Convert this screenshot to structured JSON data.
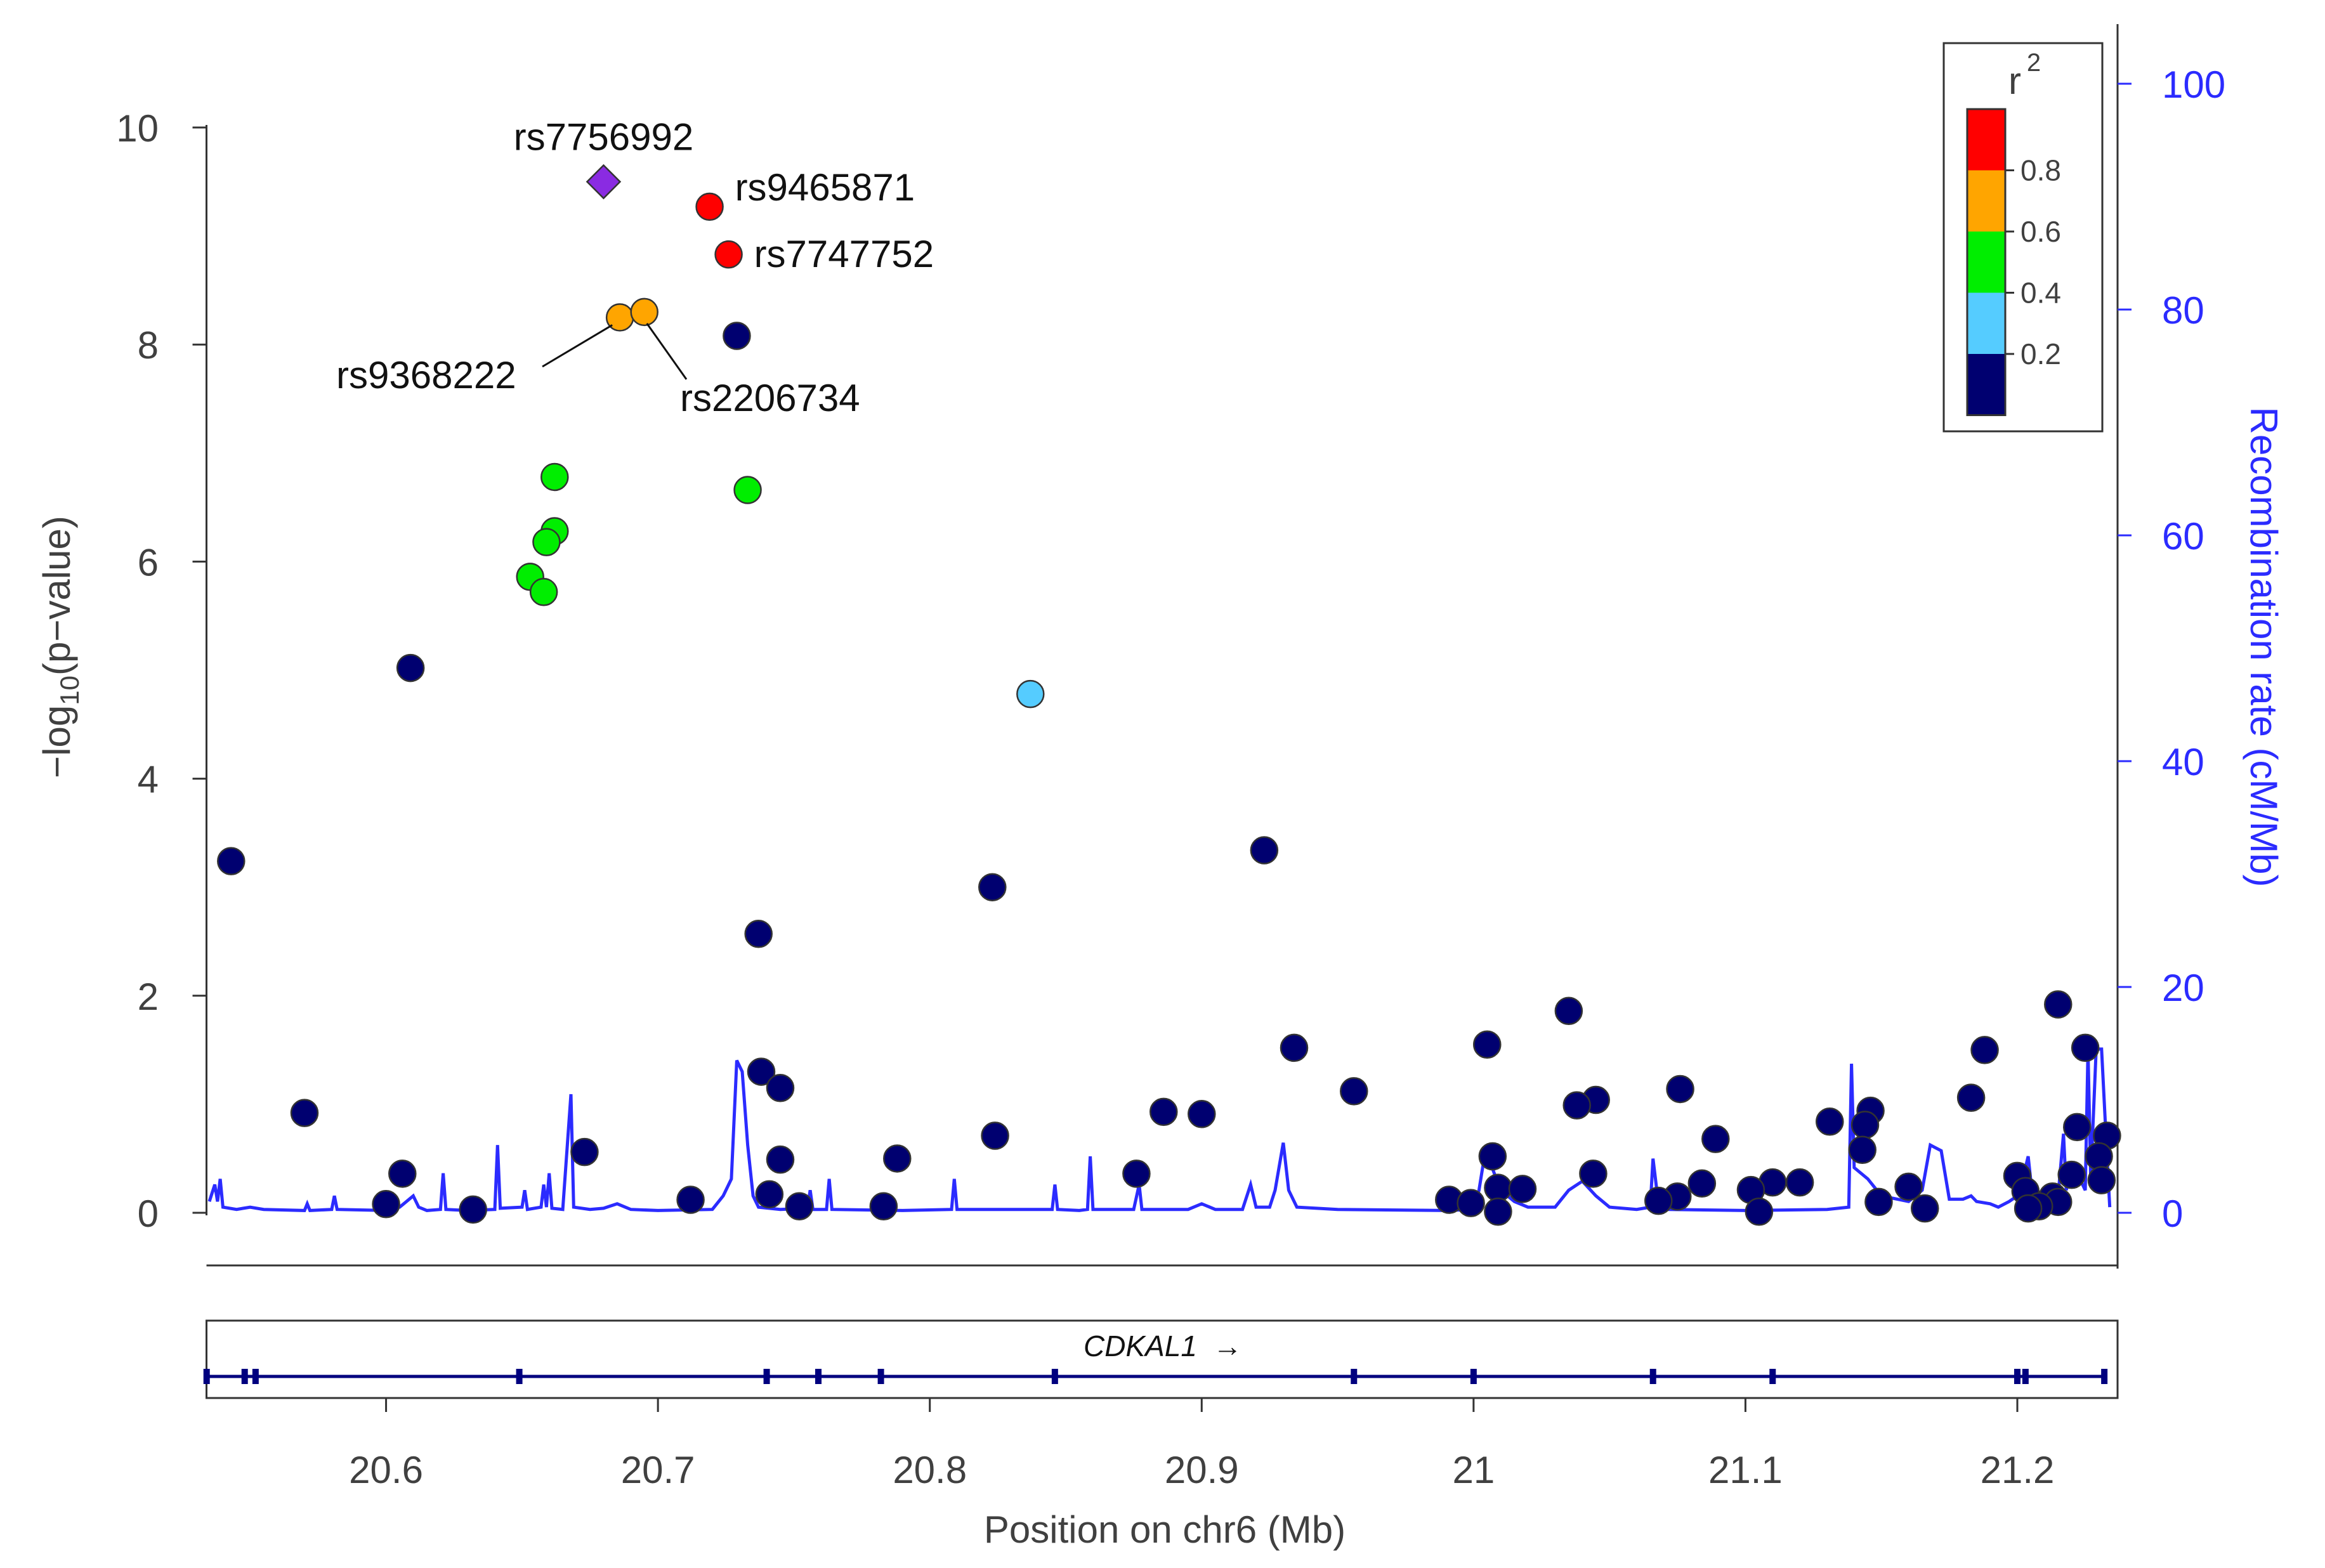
{
  "chart_data": {
    "type": "scatter",
    "title": "",
    "xlabel": "Position on chr6 (Mb)",
    "ylabel": "-log10(p-value)",
    "ylabel_main": "−log",
    "ylabel_sub": "10",
    "ylabel_rest": "(p−value)",
    "y2label": "Recombination rate (cM/Mb)",
    "xlim": [
      20.535,
      21.235
    ],
    "ylim": [
      -0.5,
      10.5
    ],
    "y2lim": [
      0,
      100
    ],
    "xticks": [
      20.6,
      20.7,
      20.8,
      20.9,
      21.0,
      21.1,
      21.2
    ],
    "xtick_labels": [
      "20.6",
      "20.7",
      "20.8",
      "20.9",
      "21",
      "21.1",
      "21.2"
    ],
    "yticks": [
      0,
      2,
      4,
      6,
      8,
      10
    ],
    "ytick_labels": [
      "0",
      "2",
      "4",
      "6",
      "8",
      "10"
    ],
    "y2ticks": [
      0,
      20,
      40,
      60,
      80,
      100
    ],
    "y2tick_labels": [
      "0",
      "20",
      "40",
      "60",
      "80",
      "100"
    ],
    "colors": {
      "axis": "#333333",
      "recomb": "#2b2bff",
      "gene": "#00007f",
      "r2_high": "#ff0000",
      "r2_06": "#ffa500",
      "r2_04": "#00ee00",
      "r2_02": "#55ccff",
      "r2_low": "#000070",
      "lead": "#8a2be2"
    },
    "legend": {
      "title": "r",
      "title_sup": "2",
      "position": "top-right",
      "bins": [
        {
          "label": "0.8",
          "color": "#ff0000"
        },
        {
          "label": "0.6",
          "color": "#ffa500"
        },
        {
          "label": "0.4",
          "color": "#00ee00"
        },
        {
          "label": "0.2",
          "color": "#55ccff"
        },
        {
          "label": "",
          "color": "#000070"
        }
      ],
      "tick_labels": [
        "0.8",
        "0.6",
        "0.4",
        "0.2"
      ]
    },
    "gene": {
      "name": "CDKAL1",
      "arrow": "→",
      "start": 20.534,
      "end": 21.232,
      "exons": [
        20.534,
        20.548,
        20.552,
        20.649,
        20.74,
        20.759,
        20.782,
        20.846,
        20.956,
        21.0,
        21.066,
        21.11,
        21.2,
        21.203,
        21.232
      ]
    },
    "annotations": [
      {
        "label": "rs7756992",
        "x": 20.68,
        "y": 9.5
      },
      {
        "label": "rs9465871",
        "x": 20.719,
        "y": 9.27
      },
      {
        "label": "rs7747752",
        "x": 20.726,
        "y": 8.83
      },
      {
        "label": "rs9368222",
        "x": 20.686,
        "y": 8.25
      },
      {
        "label": "rs2206734",
        "x": 20.695,
        "y": 8.3
      }
    ],
    "series": [
      {
        "name": "lead",
        "r2_bin": "lead",
        "points": [
          [
            20.68,
            9.5
          ]
        ]
      },
      {
        "name": "r2 0.8-1.0",
        "r2_bin": "r2_high",
        "points": [
          [
            20.719,
            9.27
          ],
          [
            20.726,
            8.83
          ]
        ]
      },
      {
        "name": "r2 0.6-0.8",
        "r2_bin": "r2_06",
        "points": [
          [
            20.686,
            8.25
          ],
          [
            20.695,
            8.3
          ]
        ]
      },
      {
        "name": "r2 0.4-0.6",
        "r2_bin": "r2_04",
        "points": [
          [
            20.662,
            6.78
          ],
          [
            20.733,
            6.66
          ],
          [
            20.662,
            6.28
          ],
          [
            20.659,
            6.18
          ],
          [
            20.653,
            5.86
          ],
          [
            20.658,
            5.72
          ]
        ]
      },
      {
        "name": "r2 0.2-0.4",
        "r2_bin": "r2_02",
        "points": [
          [
            20.837,
            4.78
          ]
        ]
      },
      {
        "name": "r2 0.0-0.2",
        "r2_bin": "r2_low",
        "points": [
          [
            20.729,
            8.08
          ],
          [
            20.609,
            5.02
          ],
          [
            20.543,
            3.24
          ],
          [
            20.923,
            3.34
          ],
          [
            20.823,
            3.0
          ],
          [
            20.737,
            2.57
          ],
          [
            21.035,
            1.86
          ],
          [
            21.215,
            1.92
          ],
          [
            20.934,
            1.52
          ],
          [
            21.005,
            1.55
          ],
          [
            21.188,
            1.5
          ],
          [
            21.225,
            1.52
          ],
          [
            20.738,
            1.3
          ],
          [
            20.745,
            1.15
          ],
          [
            20.956,
            1.12
          ],
          [
            21.076,
            1.14
          ],
          [
            21.183,
            1.06
          ],
          [
            21.045,
            1.04
          ],
          [
            21.038,
            0.99
          ],
          [
            21.146,
            0.94
          ],
          [
            20.57,
            0.92
          ],
          [
            20.886,
            0.93
          ],
          [
            20.9,
            0.91
          ],
          [
            21.131,
            0.84
          ],
          [
            21.144,
            0.81
          ],
          [
            21.222,
            0.79
          ],
          [
            21.233,
            0.71
          ],
          [
            20.824,
            0.71
          ],
          [
            21.089,
            0.68
          ],
          [
            21.143,
            0.58
          ],
          [
            20.673,
            0.56
          ],
          [
            21.23,
            0.52
          ],
          [
            21.007,
            0.52
          ],
          [
            20.745,
            0.49
          ],
          [
            20.788,
            0.5
          ],
          [
            20.876,
            0.36
          ],
          [
            20.606,
            0.36
          ],
          [
            21.044,
            0.36
          ],
          [
            21.22,
            0.35
          ],
          [
            21.2,
            0.34
          ],
          [
            21.231,
            0.3
          ],
          [
            21.11,
            0.28
          ],
          [
            21.12,
            0.28
          ],
          [
            21.084,
            0.27
          ],
          [
            21.16,
            0.24
          ],
          [
            21.009,
            0.23
          ],
          [
            21.018,
            0.22
          ],
          [
            21.102,
            0.21
          ],
          [
            21.203,
            0.2
          ],
          [
            20.741,
            0.17
          ],
          [
            21.075,
            0.15
          ],
          [
            21.213,
            0.15
          ],
          [
            20.712,
            0.12
          ],
          [
            20.991,
            0.12
          ],
          [
            21.068,
            0.11
          ],
          [
            21.149,
            0.1
          ],
          [
            21.215,
            0.1
          ],
          [
            20.999,
            0.09
          ],
          [
            20.6,
            0.08
          ],
          [
            20.752,
            0.06
          ],
          [
            20.783,
            0.06
          ],
          [
            21.208,
            0.06
          ],
          [
            21.204,
            0.04
          ],
          [
            21.166,
            0.04
          ],
          [
            20.632,
            0.03
          ],
          [
            21.009,
            0.01
          ],
          [
            21.105,
            0.01
          ]
        ]
      }
    ],
    "recombination": [
      [
        20.535,
        1
      ],
      [
        20.537,
        2.5
      ],
      [
        20.538,
        1
      ],
      [
        20.539,
        3
      ],
      [
        20.54,
        0.5
      ],
      [
        20.545,
        0.3
      ],
      [
        20.55,
        0.5
      ],
      [
        20.555,
        0.3
      ],
      [
        20.57,
        0.2
      ],
      [
        20.571,
        0.8
      ],
      [
        20.572,
        0.2
      ],
      [
        20.58,
        0.3
      ],
      [
        20.581,
        1.5
      ],
      [
        20.582,
        0.3
      ],
      [
        20.6,
        0.2
      ],
      [
        20.605,
        0.5
      ],
      [
        20.61,
        1.5
      ],
      [
        20.612,
        0.5
      ],
      [
        20.615,
        0.2
      ],
      [
        20.62,
        0.3
      ],
      [
        20.621,
        3.5
      ],
      [
        20.622,
        0.3
      ],
      [
        20.63,
        0.2
      ],
      [
        20.64,
        0.3
      ],
      [
        20.641,
        6
      ],
      [
        20.642,
        0.4
      ],
      [
        20.65,
        0.5
      ],
      [
        20.651,
        2
      ],
      [
        20.652,
        0.3
      ],
      [
        20.657,
        0.5
      ],
      [
        20.658,
        2.5
      ],
      [
        20.659,
        0.5
      ],
      [
        20.66,
        3.5
      ],
      [
        20.661,
        0.4
      ],
      [
        20.665,
        0.3
      ],
      [
        20.668,
        10.5
      ],
      [
        20.669,
        0.5
      ],
      [
        20.675,
        0.3
      ],
      [
        20.68,
        0.4
      ],
      [
        20.685,
        0.8
      ],
      [
        20.69,
        0.3
      ],
      [
        20.7,
        0.2
      ],
      [
        20.72,
        0.3
      ],
      [
        20.724,
        1.5
      ],
      [
        20.727,
        3
      ],
      [
        20.729,
        13.5
      ],
      [
        20.731,
        12.5
      ],
      [
        20.733,
        6
      ],
      [
        20.735,
        1.5
      ],
      [
        20.737,
        0.5
      ],
      [
        20.745,
        0.3
      ],
      [
        20.755,
        0.4
      ],
      [
        20.756,
        2
      ],
      [
        20.757,
        0.3
      ],
      [
        20.762,
        0.3
      ],
      [
        20.763,
        3
      ],
      [
        20.764,
        0.3
      ],
      [
        20.79,
        0.2
      ],
      [
        20.808,
        0.3
      ],
      [
        20.809,
        3
      ],
      [
        20.81,
        0.3
      ],
      [
        20.845,
        0.3
      ],
      [
        20.846,
        2.5
      ],
      [
        20.847,
        0.3
      ],
      [
        20.855,
        0.2
      ],
      [
        20.858,
        0.3
      ],
      [
        20.859,
        5
      ],
      [
        20.86,
        0.3
      ],
      [
        20.875,
        0.3
      ],
      [
        20.877,
        2.5
      ],
      [
        20.878,
        0.3
      ],
      [
        20.895,
        0.3
      ],
      [
        20.9,
        0.8
      ],
      [
        20.905,
        0.3
      ],
      [
        20.915,
        0.3
      ],
      [
        20.918,
        2.5
      ],
      [
        20.92,
        0.5
      ],
      [
        20.925,
        0.5
      ],
      [
        20.927,
        2
      ],
      [
        20.93,
        6.2
      ],
      [
        20.932,
        2
      ],
      [
        20.935,
        0.5
      ],
      [
        20.95,
        0.3
      ],
      [
        20.99,
        0.2
      ],
      [
        21.0,
        0.3
      ],
      [
        21.002,
        2
      ],
      [
        21.004,
        5
      ],
      [
        21.006,
        4.5
      ],
      [
        21.01,
        2
      ],
      [
        21.015,
        1
      ],
      [
        21.02,
        0.5
      ],
      [
        21.03,
        0.5
      ],
      [
        21.035,
        2
      ],
      [
        21.04,
        2.8
      ],
      [
        21.045,
        1.5
      ],
      [
        21.05,
        0.5
      ],
      [
        21.06,
        0.3
      ],
      [
        21.065,
        0.5
      ],
      [
        21.066,
        4.8
      ],
      [
        21.068,
        0.8
      ],
      [
        21.07,
        0.3
      ],
      [
        21.1,
        0.2
      ],
      [
        21.13,
        0.3
      ],
      [
        21.138,
        0.5
      ],
      [
        21.139,
        13.2
      ],
      [
        21.14,
        4
      ],
      [
        21.145,
        3
      ],
      [
        21.15,
        1.5
      ],
      [
        21.16,
        1
      ],
      [
        21.165,
        2
      ],
      [
        21.168,
        6
      ],
      [
        21.172,
        5.5
      ],
      [
        21.175,
        1.2
      ],
      [
        21.18,
        1.2
      ],
      [
        21.183,
        1.5
      ],
      [
        21.185,
        1
      ],
      [
        21.19,
        0.8
      ],
      [
        21.193,
        0.5
      ],
      [
        21.197,
        1
      ],
      [
        21.2,
        1.5
      ],
      [
        21.202,
        3
      ],
      [
        21.204,
        5
      ],
      [
        21.206,
        0.5
      ],
      [
        21.21,
        1.2
      ],
      [
        21.215,
        1.5
      ],
      [
        21.217,
        7
      ],
      [
        21.218,
        2
      ],
      [
        21.22,
        4
      ],
      [
        21.223,
        3
      ],
      [
        21.225,
        2
      ],
      [
        21.226,
        14.5
      ],
      [
        21.227,
        3
      ],
      [
        21.229,
        14.5
      ],
      [
        21.231,
        14.5
      ],
      [
        21.233,
        5
      ],
      [
        21.234,
        0.5
      ]
    ]
  }
}
